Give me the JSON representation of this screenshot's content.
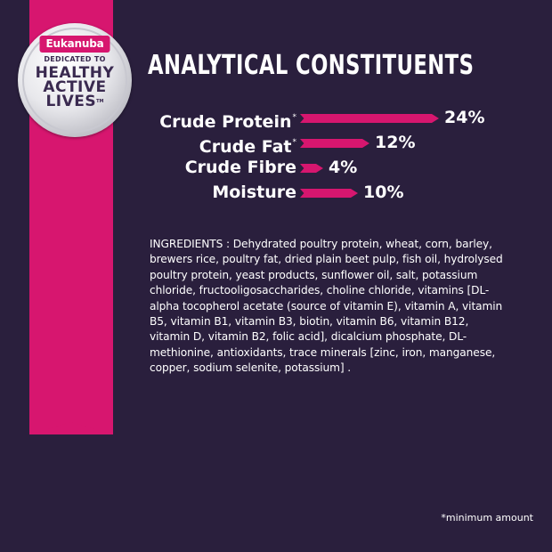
{
  "badge": {
    "brand": "Eukanuba",
    "dedicated": "DEDICATED TO",
    "line1": "HEALTHY",
    "line2": "ACTIVE",
    "line3": "LIVES",
    "tm": "TM"
  },
  "title": "ANALYTICAL CONSTITUENTS",
  "constituents": [
    {
      "label": "Crude Protein",
      "mark": "*",
      "value": "24%",
      "percent": 24
    },
    {
      "label": "Crude Fat",
      "mark": "*",
      "value": "12%",
      "percent": 12
    },
    {
      "label": "Crude Fibre",
      "mark": "",
      "value": "4%",
      "percent": 4
    },
    {
      "label": "Moisture",
      "mark": "",
      "value": "10%",
      "percent": 10
    }
  ],
  "ingredients": "INGREDIENTS : Dehydrated poultry protein, wheat, corn, barley, brewers rice, poultry fat, dried plain beet pulp, fish oil, hydrolysed poultry protein, yeast products, sunflower oil, salt, potassium chloride, fructooligosaccharides, choline chloride, vitamins [DL-alpha tocopherol acetate (source of vitamin E), vitamin A, vitamin B5, vitamin B1, vitamin B3, biotin, vitamin B6, vitamin B12, vitamin D, vitamin B2, folic acid], dicalcium phosphate, DL-methionine, antioxidants, trace minerals [zinc, iron, manganese, copper, sodium selenite, potassium] .",
  "footnote": "*minimum amount",
  "colors": {
    "background": "#2a1f3d",
    "accent": "#d7166f"
  }
}
